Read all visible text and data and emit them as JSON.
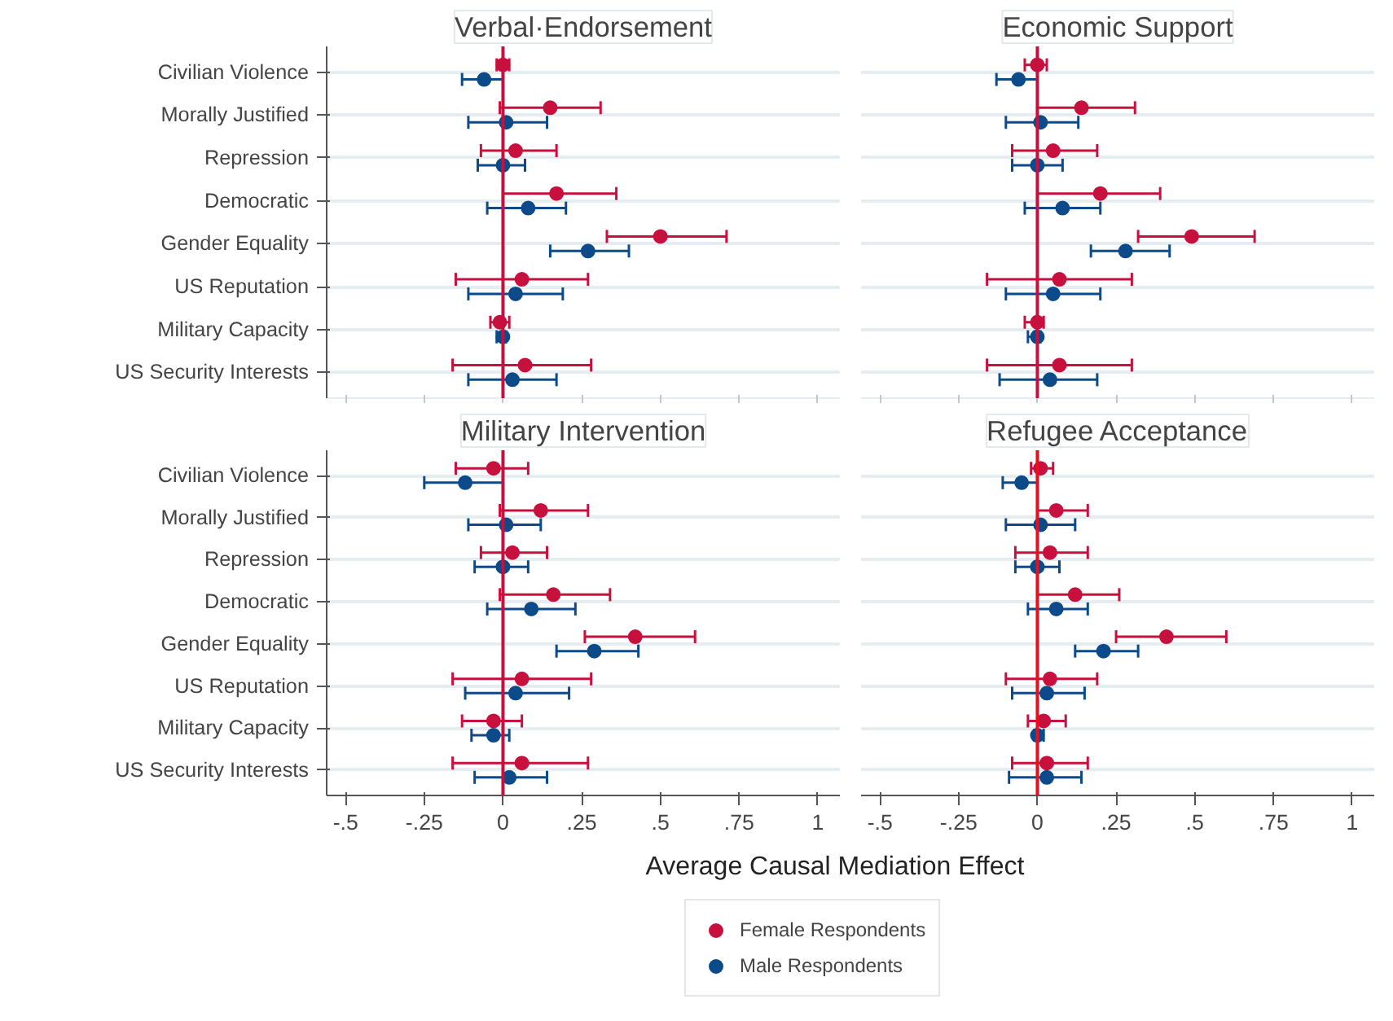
{
  "chart_data": [
    {
      "type": "scatter",
      "title": "Verbal·Endorsement",
      "orientation": "horizontal",
      "marker": "circle",
      "grid": "y",
      "tick_labels": "y",
      "categories": [
        "Civilian Violence",
        "Morally Justified",
        "Repression",
        "Democratic",
        "Gender Equality",
        "US Reputation",
        "Military Capacity",
        "US Security Interests"
      ],
      "xlim": [
        -0.56,
        1.07
      ],
      "xticks": [
        {
          "value": -0.5,
          "label": null
        },
        {
          "value": -0.25,
          "label": null
        },
        {
          "value": 0,
          "label": null
        },
        {
          "value": 0.25,
          "label": null
        },
        {
          "value": 0.5,
          "label": null
        },
        {
          "value": 0.75,
          "label": null
        },
        {
          "value": 1,
          "label": null
        }
      ],
      "ref_lines": [
        {
          "axis": "x",
          "value": 0,
          "color": "#c8103e"
        }
      ],
      "series": [
        {
          "color": "#c8103e",
          "values": [
            0.0,
            0.15,
            0.04,
            0.17,
            0.5,
            0.06,
            -0.01,
            0.07
          ],
          "errors": [
            [
              -0.02,
              0.02
            ],
            [
              -0.01,
              0.31
            ],
            [
              -0.07,
              0.17
            ],
            [
              0.0,
              0.36
            ],
            [
              0.33,
              0.71
            ],
            [
              -0.15,
              0.27
            ],
            [
              -0.04,
              0.02
            ],
            [
              -0.16,
              0.28
            ]
          ]
        },
        {
          "color": "#0c4a8a",
          "values": [
            -0.06,
            0.01,
            0.0,
            0.08,
            0.27,
            0.04,
            0.0,
            0.03
          ],
          "errors": [
            [
              -0.13,
              0.0
            ],
            [
              -0.11,
              0.14
            ],
            [
              -0.08,
              0.07
            ],
            [
              -0.05,
              0.2
            ],
            [
              0.15,
              0.4
            ],
            [
              -0.11,
              0.19
            ],
            [
              -0.02,
              0.01
            ],
            [
              -0.11,
              0.17
            ]
          ]
        }
      ]
    },
    {
      "type": "scatter",
      "title": "Economic Support",
      "orientation": "horizontal",
      "marker": "circle",
      "grid": "y",
      "tick_labels": false,
      "categories": [
        null,
        null,
        null,
        null,
        null,
        null,
        null,
        null
      ],
      "xlim": [
        -0.56,
        1.07
      ],
      "xticks": [
        {
          "value": -0.5,
          "label": null
        },
        {
          "value": -0.25,
          "label": null
        },
        {
          "value": 0,
          "label": null
        },
        {
          "value": 0.25,
          "label": null
        },
        {
          "value": 0.5,
          "label": null
        },
        {
          "value": 0.75,
          "label": null
        },
        {
          "value": 1,
          "label": null
        }
      ],
      "ref_lines": [
        {
          "axis": "x",
          "value": 0,
          "color": "#c8103e"
        }
      ],
      "series": [
        {
          "color": "#c8103e",
          "values": [
            0.0,
            0.14,
            0.05,
            0.2,
            0.49,
            0.07,
            0.0,
            0.07
          ],
          "errors": [
            [
              -0.04,
              0.03
            ],
            [
              0.0,
              0.31
            ],
            [
              -0.08,
              0.19
            ],
            [
              0.0,
              0.39
            ],
            [
              0.32,
              0.69
            ],
            [
              -0.16,
              0.3
            ],
            [
              -0.04,
              0.02
            ],
            [
              -0.16,
              0.3
            ]
          ]
        },
        {
          "color": "#0c4a8a",
          "values": [
            -0.06,
            0.01,
            0.0,
            0.08,
            0.28,
            0.05,
            0.0,
            0.04
          ],
          "errors": [
            [
              -0.13,
              0.0
            ],
            [
              -0.1,
              0.13
            ],
            [
              -0.08,
              0.08
            ],
            [
              -0.04,
              0.2
            ],
            [
              0.17,
              0.42
            ],
            [
              -0.1,
              0.2
            ],
            [
              -0.03,
              0.01
            ],
            [
              -0.12,
              0.19
            ]
          ]
        }
      ]
    },
    {
      "type": "scatter",
      "title": "Military Intervention",
      "orientation": "horizontal",
      "marker": "circle",
      "grid": "y",
      "xlabel": "Average Causal Mediation Effect",
      "categories": [
        "Civilian Violence",
        "Morally Justified",
        "Repression",
        "Democratic",
        "Gender Equality",
        "US Reputation",
        "Military Capacity",
        "US Security Interests"
      ],
      "xlim": [
        -0.56,
        1.07
      ],
      "xticks": [
        {
          "value": -0.5,
          "label": "-.5"
        },
        {
          "value": -0.25,
          "label": "-.25"
        },
        {
          "value": 0,
          "label": "0"
        },
        {
          "value": 0.25,
          "label": ".25"
        },
        {
          "value": 0.5,
          "label": ".5"
        },
        {
          "value": 0.75,
          "label": ".75"
        },
        {
          "value": 1,
          "label": "1"
        }
      ],
      "ref_lines": [
        {
          "axis": "x",
          "value": 0,
          "color": "#c8103e"
        }
      ],
      "series": [
        {
          "color": "#c8103e",
          "values": [
            -0.03,
            0.12,
            0.03,
            0.16,
            0.42,
            0.06,
            -0.03,
            0.06
          ],
          "errors": [
            [
              -0.15,
              0.08
            ],
            [
              -0.01,
              0.27
            ],
            [
              -0.07,
              0.14
            ],
            [
              -0.01,
              0.34
            ],
            [
              0.26,
              0.61
            ],
            [
              -0.16,
              0.28
            ],
            [
              -0.13,
              0.06
            ],
            [
              -0.16,
              0.27
            ]
          ]
        },
        {
          "color": "#0c4a8a",
          "values": [
            -0.12,
            0.01,
            0.0,
            0.09,
            0.29,
            0.04,
            -0.03,
            0.02
          ],
          "errors": [
            [
              -0.25,
              0.0
            ],
            [
              -0.11,
              0.12
            ],
            [
              -0.09,
              0.08
            ],
            [
              -0.05,
              0.23
            ],
            [
              0.17,
              0.43
            ],
            [
              -0.12,
              0.21
            ],
            [
              -0.1,
              0.02
            ],
            [
              -0.09,
              0.14
            ]
          ]
        }
      ]
    },
    {
      "type": "scatter",
      "title": "Refugee Acceptance",
      "orientation": "horizontal",
      "marker": "circle",
      "grid": "y",
      "tick_labels": "x",
      "legend": "bottom",
      "categories": [
        null,
        null,
        null,
        null,
        null,
        null,
        null,
        null
      ],
      "xlim": [
        -0.56,
        1.07
      ],
      "xticks": [
        {
          "value": -0.5,
          "label": "-.5"
        },
        {
          "value": -0.25,
          "label": "-.25"
        },
        {
          "value": 0,
          "label": "0"
        },
        {
          "value": 0.25,
          "label": ".25"
        },
        {
          "value": 0.5,
          "label": ".5"
        },
        {
          "value": 0.75,
          "label": ".75"
        },
        {
          "value": 1,
          "label": "1"
        }
      ],
      "ref_lines": [
        {
          "axis": "x",
          "value": 0,
          "color": "#e8101e"
        }
      ],
      "series": [
        {
          "name": "Female Respondents",
          "color": "#c8103e",
          "values": [
            0.01,
            0.06,
            0.04,
            0.12,
            0.41,
            0.04,
            0.02,
            0.03
          ],
          "errors": [
            [
              -0.02,
              0.05
            ],
            [
              0.0,
              0.16
            ],
            [
              -0.07,
              0.16
            ],
            [
              0.0,
              0.26
            ],
            [
              0.25,
              0.6
            ],
            [
              -0.1,
              0.19
            ],
            [
              -0.03,
              0.09
            ],
            [
              -0.08,
              0.16
            ]
          ]
        },
        {
          "name": "Male Respondents",
          "color": "#0c4a8a",
          "values": [
            -0.05,
            0.01,
            0.0,
            0.06,
            0.21,
            0.03,
            0.0,
            0.03
          ],
          "errors": [
            [
              -0.11,
              0.0
            ],
            [
              -0.1,
              0.12
            ],
            [
              -0.07,
              0.07
            ],
            [
              -0.03,
              0.16
            ],
            [
              0.12,
              0.32
            ],
            [
              -0.08,
              0.15
            ],
            [
              -0.01,
              0.02
            ],
            [
              -0.09,
              0.14
            ]
          ]
        }
      ]
    }
  ]
}
